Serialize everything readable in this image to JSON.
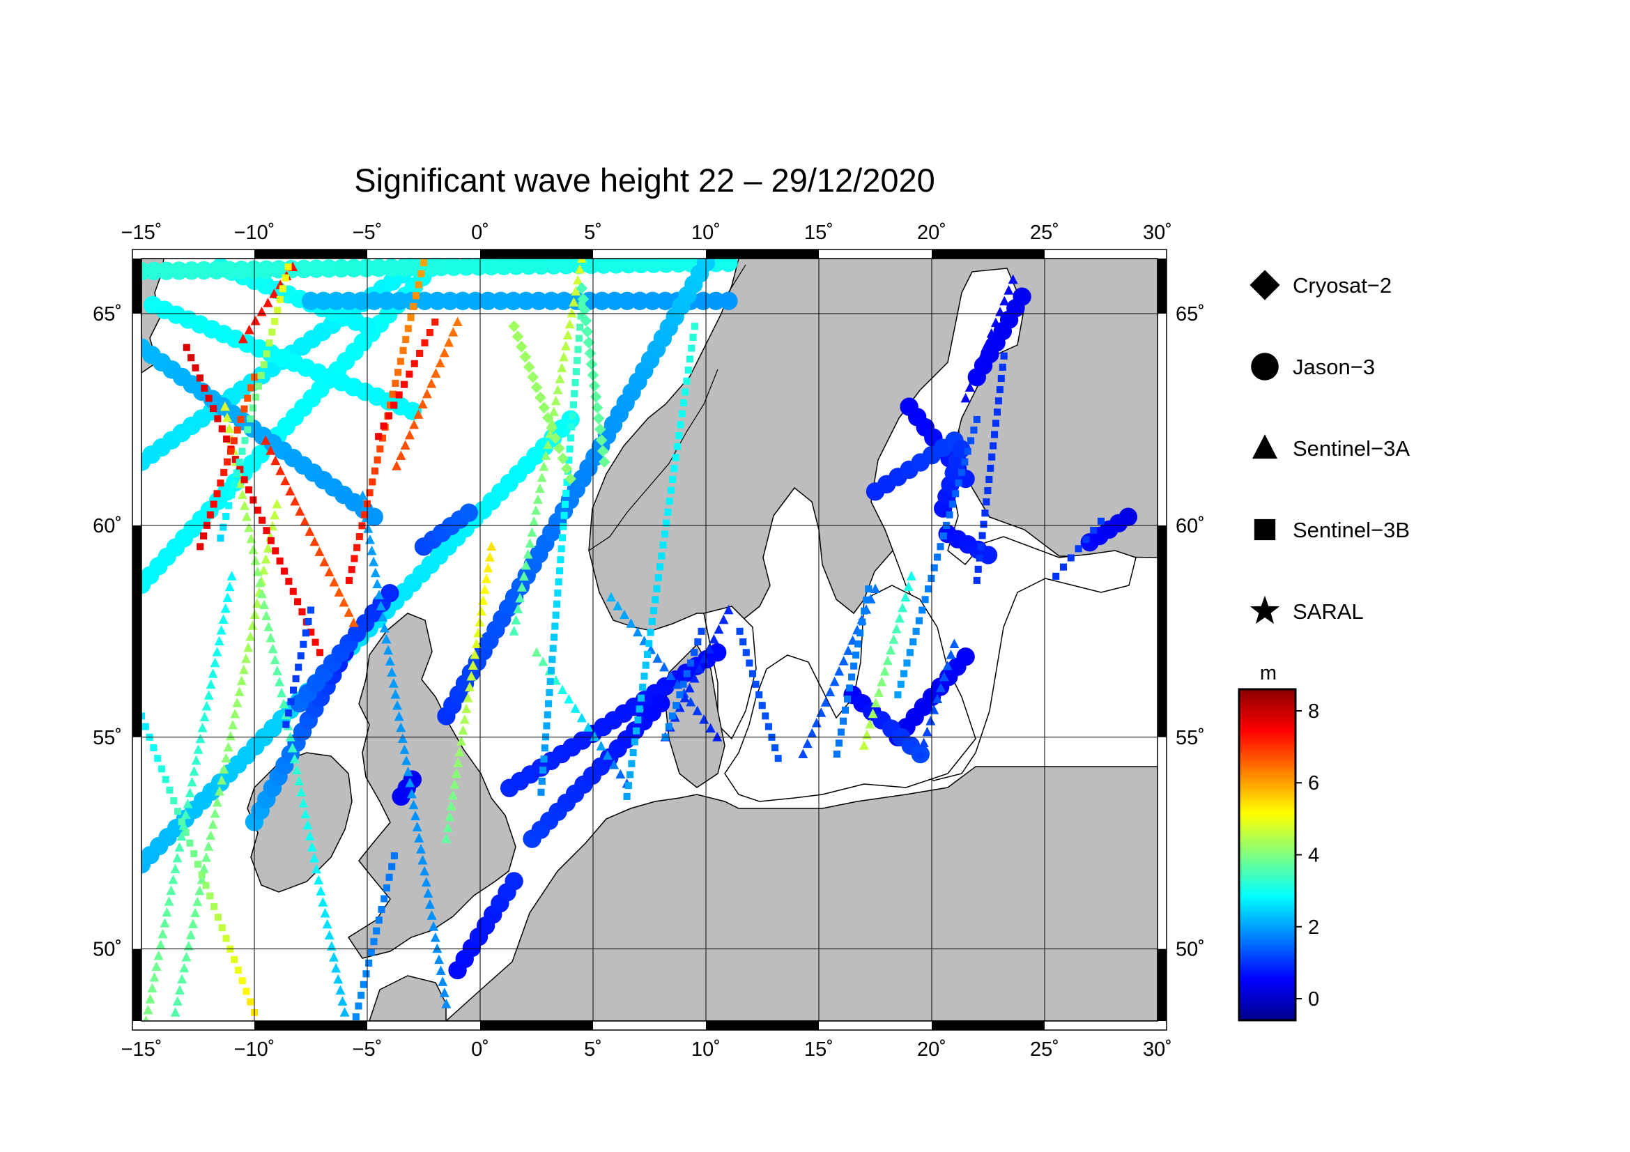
{
  "title": "Significant wave height 22 – 29/12/2020",
  "colors": {
    "land": "#bdbdbd",
    "sea": "#ffffff",
    "frame": "#000000",
    "grid": "#000000"
  },
  "map": {
    "lon_range": [
      -15,
      30
    ],
    "lat_range": [
      48.3,
      66.3
    ],
    "lon_ticks": [
      "−15˚",
      "−10˚",
      "−5˚",
      "0˚",
      "5˚",
      "10˚",
      "15˚",
      "20˚",
      "25˚",
      "30˚"
    ],
    "lat_ticks": [
      "50˚",
      "55˚",
      "60˚",
      "65˚"
    ]
  },
  "legend": {
    "items": [
      {
        "label": "Cryosat−2",
        "icon": "diamond-icon"
      },
      {
        "label": "Jason−3",
        "icon": "circle-icon"
      },
      {
        "label": "Sentinel−3A",
        "icon": "triangle-icon"
      },
      {
        "label": "Sentinel−3B",
        "icon": "square-icon"
      },
      {
        "label": "SARAL",
        "icon": "star-icon"
      }
    ]
  },
  "colorbar": {
    "unit": "m",
    "range": [
      -0.6,
      8.6
    ],
    "tick_labels": [
      "0",
      "2",
      "4",
      "6",
      "8"
    ],
    "stops": [
      "#00008b",
      "#0000ff",
      "#0080ff",
      "#00ffff",
      "#80ff80",
      "#ffff00",
      "#ff8000",
      "#ff0000",
      "#8b0000"
    ]
  },
  "chart_data": {
    "type": "scatter",
    "title": "Significant wave height 22 – 29/12/2020",
    "xlabel": "",
    "ylabel": "",
    "xlim": [
      -15,
      30
    ],
    "ylim": [
      48.3,
      66.3
    ],
    "value_unit": "m",
    "value_range": [
      -0.6,
      8.6
    ],
    "series": [
      {
        "name": "Jason−3",
        "tracks": [
          {
            "from": [
              -15,
              58.6
            ],
            "to": [
              -1.8,
              66.3
            ],
            "swh_from": 2.8,
            "swh_to": 2.9
          },
          {
            "from": [
              -15,
              61.5
            ],
            "to": [
              -3,
              66.1
            ],
            "swh_from": 2.6,
            "swh_to": 2.8
          },
          {
            "from": [
              -15,
              64.2
            ],
            "to": [
              -4.7,
              60.2
            ],
            "swh_from": 2.2,
            "swh_to": 1.9
          },
          {
            "from": [
              -11.5,
              66.1
            ],
            "to": [
              -5,
              64.7
            ],
            "swh_from": 3.0,
            "swh_to": 2.8
          },
          {
            "from": [
              -15,
              66.0
            ],
            "to": [
              11,
              66.2
            ],
            "swh_from": 3.2,
            "swh_to": 3.0
          },
          {
            "from": [
              -7.5,
              65.3
            ],
            "to": [
              11,
              65.3
            ],
            "swh_from": 2.2,
            "swh_to": 1.9
          },
          {
            "from": [
              -14.5,
              65.2
            ],
            "to": [
              -3,
              62.7
            ],
            "swh_from": 2.9,
            "swh_to": 2.8
          },
          {
            "from": [
              -15,
              52.0
            ],
            "to": [
              4,
              62.5
            ],
            "swh_from": 2.2,
            "swh_to": 2.9
          },
          {
            "from": [
              -10,
              53.0
            ],
            "to": [
              -6,
              57.0
            ],
            "swh_from": 2.1,
            "swh_to": 0.8
          },
          {
            "from": [
              -8,
              55.8
            ],
            "to": [
              -4,
              58.4
            ],
            "swh_from": 1.5,
            "swh_to": 0.9
          },
          {
            "from": [
              -2.5,
              59.5
            ],
            "to": [
              -0.5,
              60.3
            ],
            "swh_from": 1.2,
            "swh_to": 1.4
          },
          {
            "from": [
              -1.5,
              55.5
            ],
            "to": [
              10,
              66.2
            ],
            "swh_from": 1.0,
            "swh_to": 2.4
          },
          {
            "from": [
              -1,
              49.5
            ],
            "to": [
              1.5,
              51.6
            ],
            "swh_from": 0.6,
            "swh_to": 0.9
          },
          {
            "from": [
              1.3,
              53.8
            ],
            "to": [
              10.5,
              57.0
            ],
            "swh_from": 0.9,
            "swh_to": 0.6
          },
          {
            "from": [
              2.3,
              52.6
            ],
            "to": [
              8,
              55.8
            ],
            "swh_from": 1.1,
            "swh_to": 0.6
          },
          {
            "from": [
              -3.5,
              53.6
            ],
            "to": [
              -3.0,
              54.0
            ],
            "swh_from": 0.5,
            "swh_to": 0.4
          },
          {
            "from": [
              19,
              62.8
            ],
            "to": [
              21.5,
              61.1
            ],
            "swh_from": 0.5,
            "swh_to": 0.8
          },
          {
            "from": [
              17.5,
              60.8
            ],
            "to": [
              21.0,
              62.0
            ],
            "swh_from": 0.9,
            "swh_to": 1.1
          },
          {
            "from": [
              20.5,
              60.4
            ],
            "to": [
              21.3,
              61.8
            ],
            "swh_from": 0.7,
            "swh_to": 1.0
          },
          {
            "from": [
              20.7,
              59.8
            ],
            "to": [
              22.5,
              59.3
            ],
            "swh_from": 0.6,
            "swh_to": 0.8
          },
          {
            "from": [
              18.5,
              55.0
            ],
            "to": [
              21.5,
              56.9
            ],
            "swh_from": 0.4,
            "swh_to": 0.5
          },
          {
            "from": [
              16.5,
              56.0
            ],
            "to": [
              19.5,
              54.6
            ],
            "swh_from": 0.5,
            "swh_to": 1.2
          },
          {
            "from": [
              22,
              63.5
            ],
            "to": [
              24,
              65.4
            ],
            "swh_from": 0.5,
            "swh_to": 0.4
          },
          {
            "from": [
              27,
              59.6
            ],
            "to": [
              28.7,
              60.2
            ],
            "swh_from": 0.6,
            "swh_to": 0.3
          }
        ]
      },
      {
        "name": "Sentinel−3A",
        "tracks": [
          {
            "from": [
              -13.5,
              48.5
            ],
            "to": [
              -9,
              60.5
            ],
            "swh_from": 3.6,
            "swh_to": 4.6
          },
          {
            "from": [
              -14.8,
              48.3
            ],
            "to": [
              -11,
              58.8
            ],
            "swh_from": 4.0,
            "swh_to": 2.8
          },
          {
            "from": [
              -11.3,
              62.8
            ],
            "to": [
              -6,
              48.5
            ],
            "swh_from": 4.8,
            "swh_to": 2.2
          },
          {
            "from": [
              -10.5,
              64.4
            ],
            "to": [
              -8.3,
              66.1
            ],
            "swh_from": 7.3,
            "swh_to": 7.4
          },
          {
            "from": [
              -9.5,
              62.0
            ],
            "to": [
              -5.6,
              57.7
            ],
            "swh_from": 7.2,
            "swh_to": 6.6
          },
          {
            "from": [
              -5.2,
              60.7
            ],
            "to": [
              -1.5,
              48.7
            ],
            "swh_from": 2.0,
            "swh_to": 1.8
          },
          {
            "from": [
              -3.7,
              61.4
            ],
            "to": [
              -1,
              64.8
            ],
            "swh_from": 6.8,
            "swh_to": 6.4
          },
          {
            "from": [
              0.5,
              59.5
            ],
            "to": [
              -1.5,
              52.6
            ],
            "swh_from": 5.4,
            "swh_to": 3.7
          },
          {
            "from": [
              4.5,
              66.3
            ],
            "to": [
              1.5,
              57.5
            ],
            "swh_from": 4.8,
            "swh_to": 3.5
          },
          {
            "from": [
              2.5,
              57.0
            ],
            "to": [
              6.5,
              53.9
            ],
            "swh_from": 3.8,
            "swh_to": 1.3
          },
          {
            "from": [
              5.8,
              58.3
            ],
            "to": [
              10.5,
              55.0
            ],
            "swh_from": 2.2,
            "swh_to": 0.8
          },
          {
            "from": [
              11,
              58.0
            ],
            "to": [
              8.2,
              55.0
            ],
            "swh_from": 0.9,
            "swh_to": 0.9
          },
          {
            "from": [
              17.5,
              58.5
            ],
            "to": [
              14.3,
              54.6
            ],
            "swh_from": 1.6,
            "swh_to": 1.2
          },
          {
            "from": [
              19.1,
              58.8
            ],
            "to": [
              17.0,
              54.8
            ],
            "swh_from": 3.0,
            "swh_to": 4.6
          },
          {
            "from": [
              21,
              57.2
            ],
            "to": [
              19.5,
              54.6
            ],
            "swh_from": 1.4,
            "swh_to": 1.1
          },
          {
            "from": [
              23.6,
              65.8
            ],
            "to": [
              21.5,
              63.0
            ],
            "swh_from": 0.6,
            "swh_to": 0.5
          }
        ]
      },
      {
        "name": "Sentinel−3B",
        "tracks": [
          {
            "from": [
              -15,
              55.5
            ],
            "to": [
              -10,
              48.5
            ],
            "swh_from": 2.6,
            "swh_to": 5.4
          },
          {
            "from": [
              -13,
              64.2
            ],
            "to": [
              -7.1,
              57.0
            ],
            "swh_from": 7.8,
            "swh_to": 7.4
          },
          {
            "from": [
              -12.4,
              59.5
            ],
            "to": [
              -10,
              63.5
            ],
            "swh_from": 7.7,
            "swh_to": 6.6
          },
          {
            "from": [
              -8.5,
              66.1
            ],
            "to": [
              -11.5,
              59.7
            ],
            "swh_from": 5.2,
            "swh_to": 2.5
          },
          {
            "from": [
              -5.8,
              58.7
            ],
            "to": [
              -2.5,
              66.2
            ],
            "swh_from": 7.4,
            "swh_to": 6.0
          },
          {
            "from": [
              -4.5,
              62.1
            ],
            "to": [
              -2.0,
              64.8
            ],
            "swh_from": 7.6,
            "swh_to": 7.2
          },
          {
            "from": [
              -5.5,
              48.4
            ],
            "to": [
              -3.8,
              52.2
            ],
            "swh_from": 1.8,
            "swh_to": 1.6
          },
          {
            "from": [
              -8.6,
              55.3
            ],
            "to": [
              -7.5,
              58.0
            ],
            "swh_from": 1.0,
            "swh_to": 1.2
          },
          {
            "from": [
              2.7,
              53.7
            ],
            "to": [
              4.5,
              65.2
            ],
            "swh_from": 1.8,
            "swh_to": 3.6
          },
          {
            "from": [
              6.5,
              53.6
            ],
            "to": [
              9.5,
              64.7
            ],
            "swh_from": 2.0,
            "swh_to": 3.2
          },
          {
            "from": [
              9.8,
              57.5
            ],
            "to": [
              8.2,
              55.0
            ],
            "swh_from": 1.2,
            "swh_to": 1.8
          },
          {
            "from": [
              13.2,
              54.5
            ],
            "to": [
              11.5,
              57.5
            ],
            "swh_from": 1.3,
            "swh_to": 1.2
          },
          {
            "from": [
              15.8,
              54.6
            ],
            "to": [
              17.2,
              58.5
            ],
            "swh_from": 1.6,
            "swh_to": 1.7
          },
          {
            "from": [
              22,
              62.5
            ],
            "to": [
              18.5,
              56.0
            ],
            "swh_from": 1.2,
            "swh_to": 2.0
          },
          {
            "from": [
              23.2,
              64.0
            ],
            "to": [
              22.0,
              58.7
            ],
            "swh_from": 1.0,
            "swh_to": 1.0
          },
          {
            "from": [
              27.5,
              60.1
            ],
            "to": [
              25.5,
              58.8
            ],
            "swh_from": 1.1,
            "swh_to": 1.0
          }
        ]
      },
      {
        "name": "Cryosat−2",
        "tracks": [
          {
            "from": [
              1.5,
              64.7
            ],
            "to": [
              4,
              61.1
            ],
            "swh_from": 4.3,
            "swh_to": 4.1
          },
          {
            "from": [
              4.5,
              65.6
            ],
            "to": [
              5.5,
              61.5
            ],
            "swh_from": 3.5,
            "swh_to": 3.8
          }
        ]
      },
      {
        "name": "SARAL",
        "tracks": []
      }
    ]
  }
}
